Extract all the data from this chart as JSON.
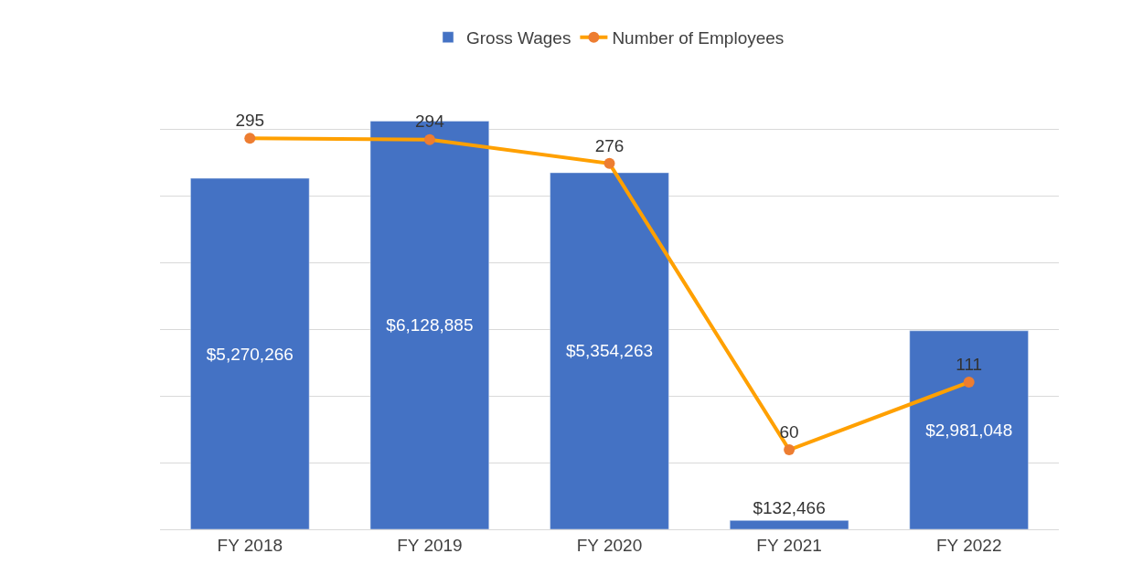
{
  "chart_data": {
    "type": "bar",
    "categories": [
      "FY 2018",
      "FY 2019",
      "FY 2020",
      "FY 2021",
      "FY 2022"
    ],
    "series": [
      {
        "name": "Gross Wages",
        "color": "#4472c4",
        "values": [
          5270266,
          6128885,
          5354263,
          132466,
          2981048
        ],
        "value_labels": [
          "$5,270,266",
          "$6,128,885",
          "$5,354,263",
          "$132,466",
          "$2,981,048"
        ]
      },
      {
        "name": "Number of Employees",
        "type": "line",
        "axis": "y2",
        "color": "#ffa000",
        "marker": "circle",
        "values": [
          295,
          294,
          276,
          60,
          111
        ],
        "value_labels": [
          "295",
          "294",
          "276",
          "60",
          "111"
        ]
      }
    ],
    "grid": "y",
    "legend": "top",
    "tick_labels": "x"
  }
}
